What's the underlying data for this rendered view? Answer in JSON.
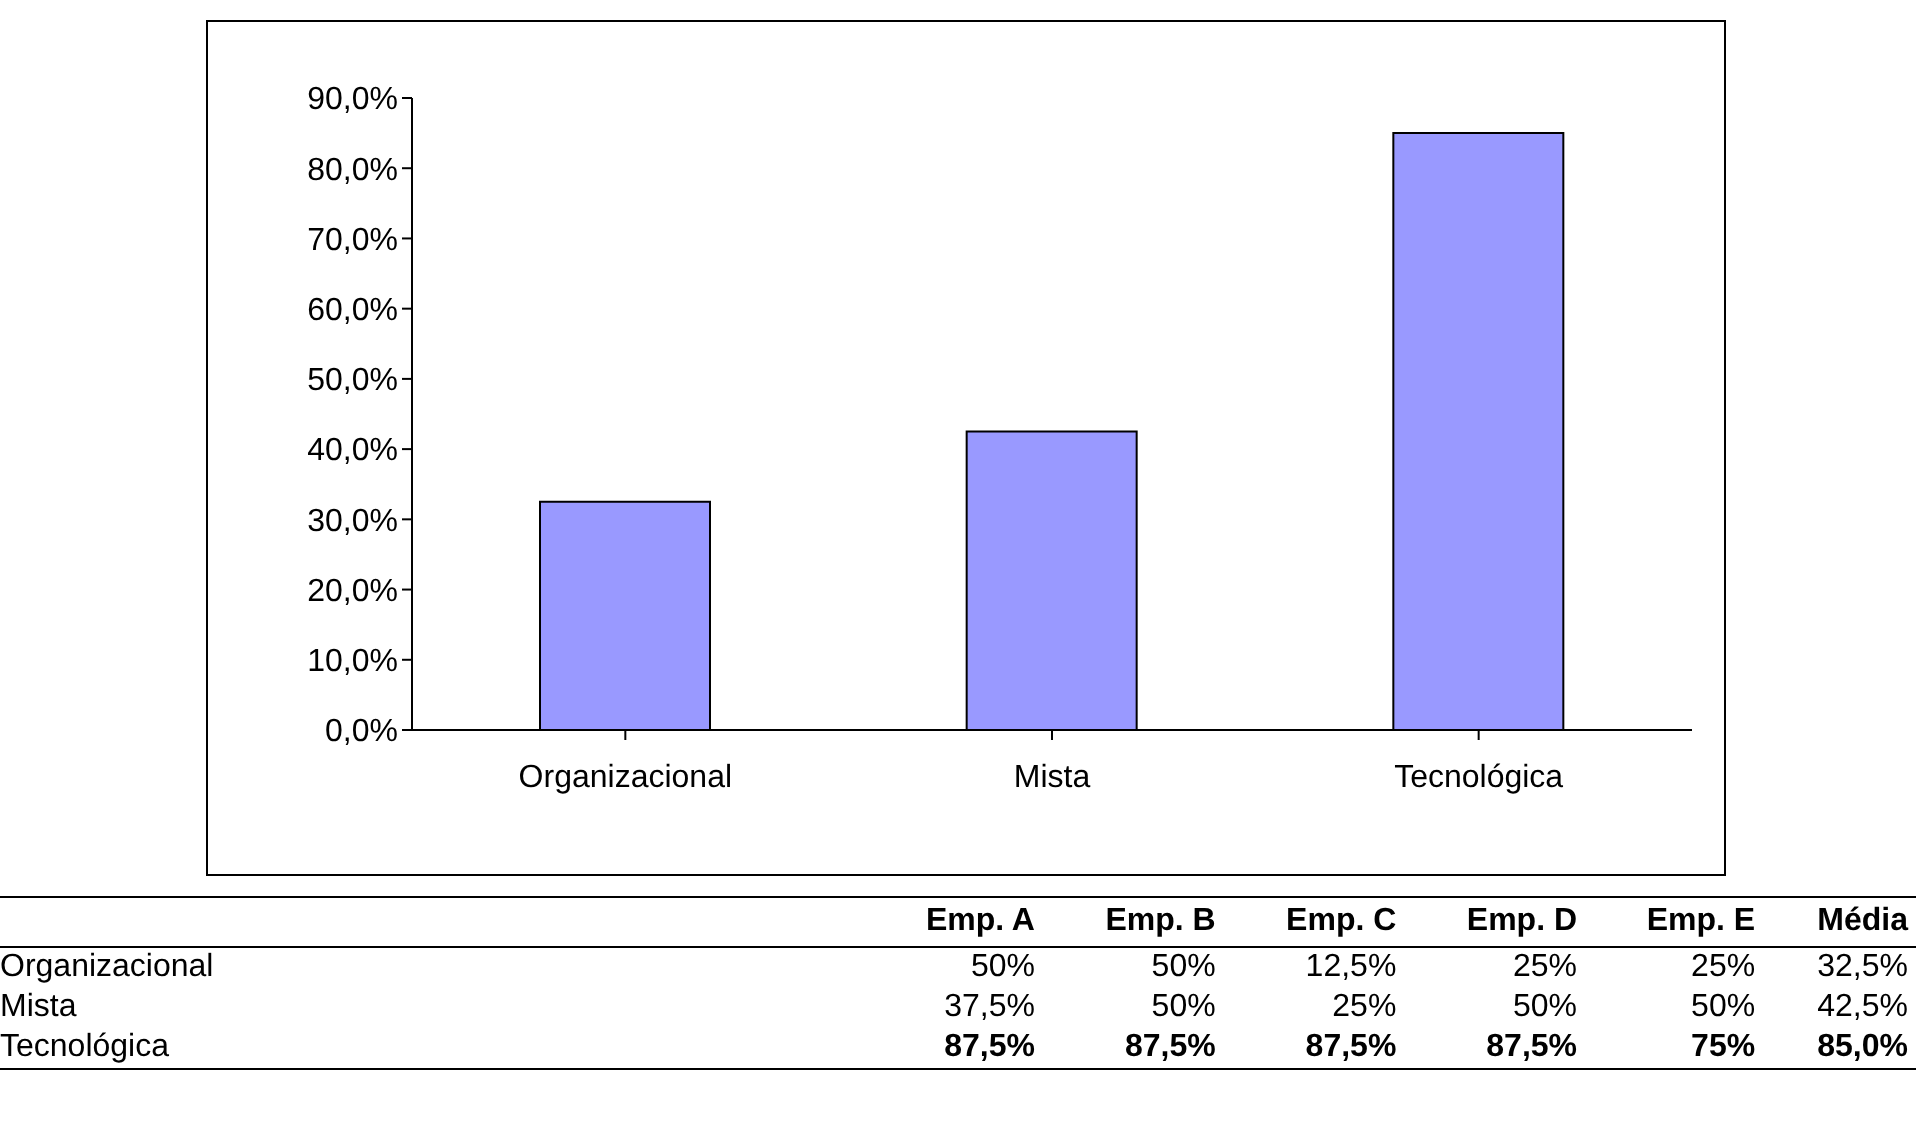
{
  "chart_data": [
    {
      "type": "bar",
      "categories": [
        "Organizacional",
        "Mista",
        "Tecnológica"
      ],
      "values": [
        32.5,
        42.5,
        85.0
      ],
      "color": "#9999ff",
      "ylim": [
        0,
        90
      ],
      "yticks": [
        {
          "value": 0,
          "label": "0,0%"
        },
        {
          "value": 10,
          "label": "10,0%"
        },
        {
          "value": 20,
          "label": "20,0%"
        },
        {
          "value": 30,
          "label": "30,0%"
        },
        {
          "value": 40,
          "label": "40,0%"
        },
        {
          "value": 50,
          "label": "50,0%"
        },
        {
          "value": 60,
          "label": "60,0%"
        },
        {
          "value": 70,
          "label": "70,0%"
        },
        {
          "value": 80,
          "label": "80,0%"
        },
        {
          "value": 90,
          "label": "90,0%"
        }
      ]
    },
    {
      "type": "other",
      "categories": [
        "Emp. A",
        "Emp. B",
        "Emp. C",
        "Emp. D",
        "Emp. E",
        "Média"
      ],
      "series": [
        {
          "name": "Organizacional",
          "values": [
            50,
            50,
            12.5,
            25,
            25,
            32.5
          ],
          "value_labels": [
            "50%",
            "50%",
            "12,5%",
            "25%",
            "25%",
            "32,5%"
          ]
        },
        {
          "name": "Mista",
          "values": [
            37.5,
            50,
            25,
            50,
            50,
            42.5
          ],
          "value_labels": [
            "37,5%",
            "50%",
            "25%",
            "50%",
            "50%",
            "42,5%"
          ]
        },
        {
          "name": "Tecnológica",
          "values": [
            87.5,
            87.5,
            87.5,
            87.5,
            75,
            85.0
          ],
          "value_labels": [
            "87,5%",
            "87,5%",
            "87,5%",
            "87,5%",
            "75%",
            "85,0%"
          ]
        }
      ]
    }
  ]
}
